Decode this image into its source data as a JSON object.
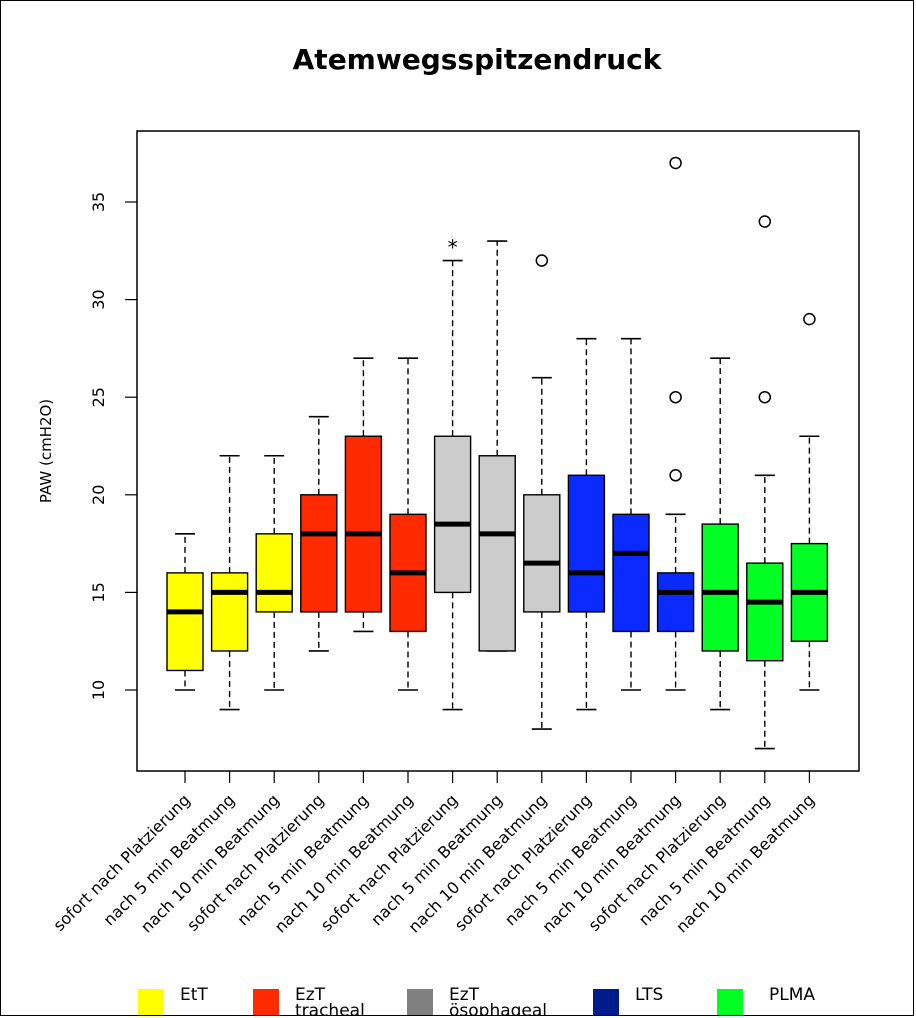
{
  "chart_data": {
    "type": "boxplot",
    "title": "Atemwegsspitzendruck",
    "ylabel": "PAW (cmH2O)",
    "ylim": [
      7,
      38
    ],
    "yticks": [
      10,
      15,
      20,
      25,
      30,
      35
    ],
    "categories": [
      "sofort nach Platzierung",
      "nach 5 min Beatmung",
      "nach 10 min Beatmung",
      "sofort nach Platzierung",
      "nach 5 min Beatmung",
      "nach 10 min Beatmung",
      "sofort nach Platzierung",
      "nach 5 min Beatmung",
      "nach 10 min Beatmung",
      "sofort nach Platzierung",
      "nach 5 min Beatmung",
      "nach 10 min Beatmung",
      "sofort nach Platzierung",
      "nach 5 min Beatmung",
      "nach 10 min Beatmung"
    ],
    "boxes": [
      {
        "group": 0,
        "whisker_low": 10,
        "q1": 11,
        "median": 14,
        "q3": 16,
        "whisker_high": 18,
        "outliers": []
      },
      {
        "group": 0,
        "whisker_low": 9,
        "q1": 12,
        "median": 15,
        "q3": 16,
        "whisker_high": 22,
        "outliers": []
      },
      {
        "group": 0,
        "whisker_low": 10,
        "q1": 14,
        "median": 15,
        "q3": 18,
        "whisker_high": 22,
        "outliers": []
      },
      {
        "group": 1,
        "whisker_low": 12,
        "q1": 14,
        "median": 18,
        "q3": 20,
        "whisker_high": 24,
        "outliers": []
      },
      {
        "group": 1,
        "whisker_low": 13,
        "q1": 14,
        "median": 18,
        "q3": 23,
        "whisker_high": 27,
        "outliers": []
      },
      {
        "group": 1,
        "whisker_low": 10,
        "q1": 13,
        "median": 16,
        "q3": 19,
        "whisker_high": 27,
        "outliers": []
      },
      {
        "group": 2,
        "whisker_low": 9,
        "q1": 15,
        "median": 18.5,
        "q3": 23,
        "whisker_high": 32,
        "outliers": [],
        "annotation": "*"
      },
      {
        "group": 2,
        "whisker_low": 12,
        "q1": 12,
        "median": 18,
        "q3": 22,
        "whisker_high": 33,
        "outliers": []
      },
      {
        "group": 2,
        "whisker_low": 8,
        "q1": 14,
        "median": 16.5,
        "q3": 20,
        "whisker_high": 26,
        "outliers": [
          32
        ]
      },
      {
        "group": 3,
        "whisker_low": 9,
        "q1": 14,
        "median": 16,
        "q3": 21,
        "whisker_high": 28,
        "outliers": []
      },
      {
        "group": 3,
        "whisker_low": 10,
        "q1": 13,
        "median": 17,
        "q3": 19,
        "whisker_high": 28,
        "outliers": []
      },
      {
        "group": 3,
        "whisker_low": 10,
        "q1": 13,
        "median": 15,
        "q3": 16,
        "whisker_high": 19,
        "outliers": [
          21,
          25,
          37
        ]
      },
      {
        "group": 4,
        "whisker_low": 9,
        "q1": 12,
        "median": 15,
        "q3": 18.5,
        "whisker_high": 27,
        "outliers": []
      },
      {
        "group": 4,
        "whisker_low": 7,
        "q1": 11.5,
        "median": 14.5,
        "q3": 16.5,
        "whisker_high": 21,
        "outliers": [
          25,
          34
        ]
      },
      {
        "group": 4,
        "whisker_low": 10,
        "q1": 12.5,
        "median": 15,
        "q3": 17.5,
        "whisker_high": 23,
        "outliers": [
          29
        ]
      }
    ],
    "box_colors": [
      "#ffff00",
      "#ff2a00",
      "#cccccc",
      "#0a2aff",
      "#00ff22"
    ],
    "legend": [
      {
        "label": "EtT",
        "sublabel": "",
        "color": "#ffff00"
      },
      {
        "label": "EzT",
        "sublabel": "tracheal",
        "color": "#ff2a00"
      },
      {
        "label": "EzT",
        "sublabel": "ösophageal",
        "color": "#808080"
      },
      {
        "label": "LTS",
        "sublabel": "",
        "color": "#001c8c"
      },
      {
        "label": "PLMA",
        "sublabel": "",
        "color": "#00ff22"
      }
    ]
  }
}
